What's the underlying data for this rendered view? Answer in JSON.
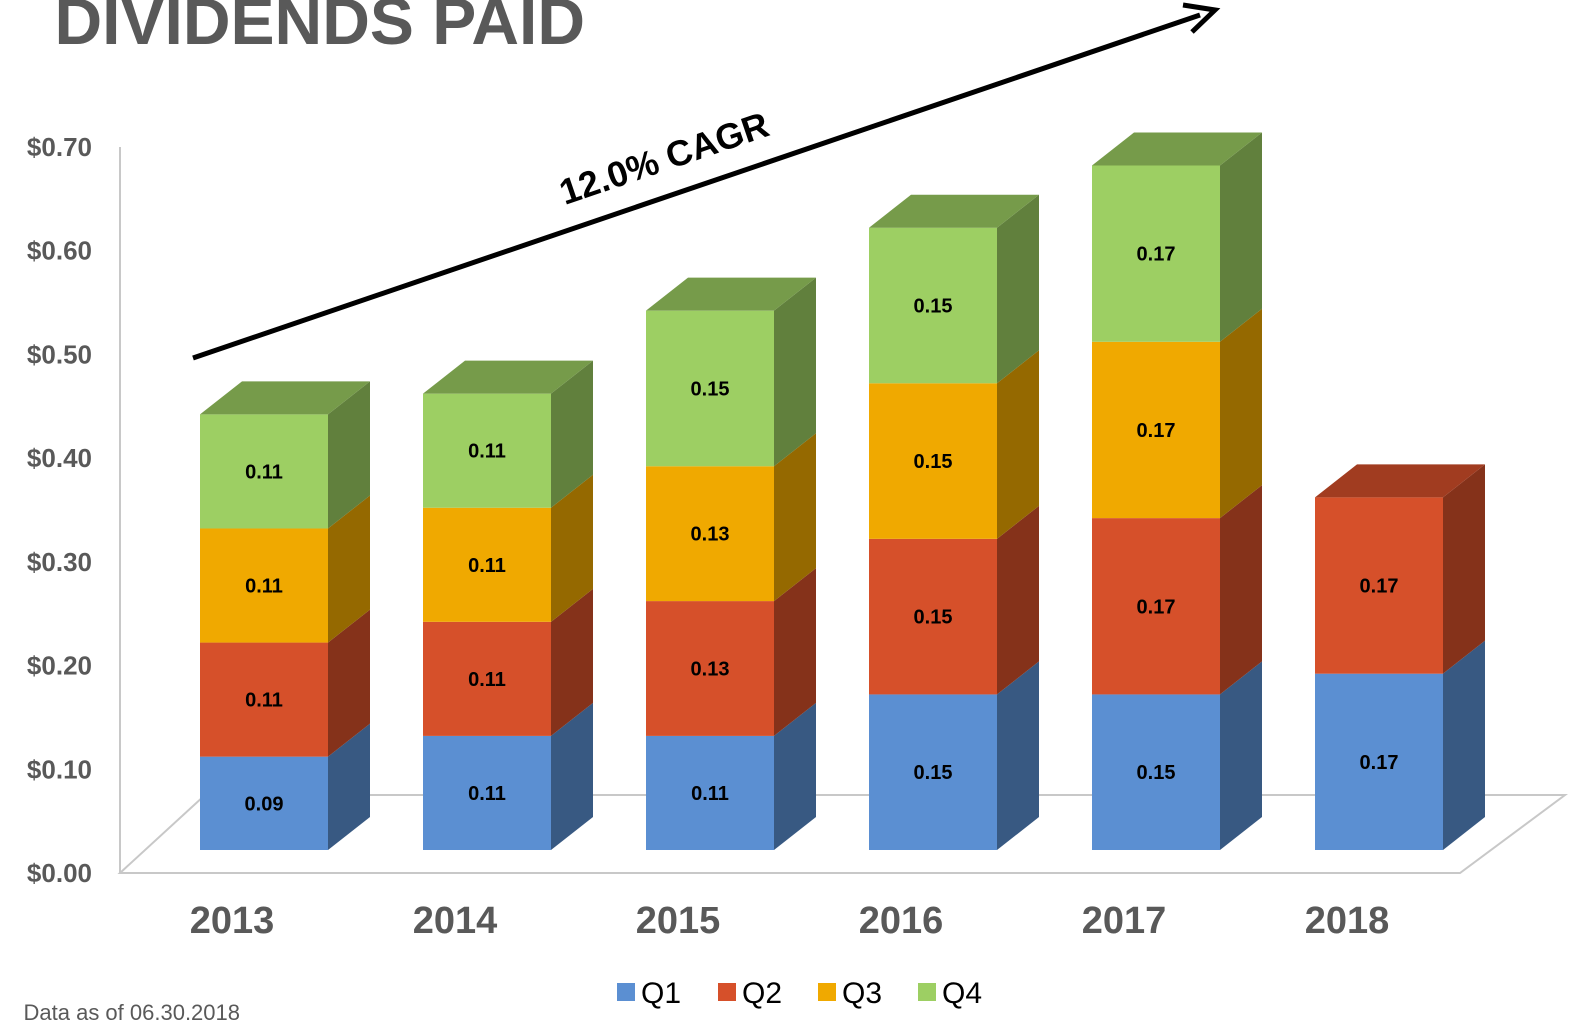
{
  "chart_data": {
    "type": "bar",
    "stacked": true,
    "title": "DIVIDENDS PAID",
    "annotation": "12.0% CAGR",
    "note": "Data as of 06.30.2018",
    "categories": [
      "2013",
      "2014",
      "2015",
      "2016",
      "2017",
      "2018"
    ],
    "series": [
      {
        "name": "Q1",
        "color": "#5b8fd2",
        "values": [
          0.09,
          0.11,
          0.11,
          0.15,
          0.15,
          0.17
        ]
      },
      {
        "name": "Q2",
        "color": "#d6502a",
        "values": [
          0.11,
          0.11,
          0.13,
          0.15,
          0.17,
          0.17
        ]
      },
      {
        "name": "Q3",
        "color": "#f0a900",
        "values": [
          0.11,
          0.11,
          0.13,
          0.15,
          0.17,
          null
        ]
      },
      {
        "name": "Q4",
        "color": "#9dcf63",
        "values": [
          0.11,
          0.11,
          0.15,
          0.15,
          0.17,
          null
        ]
      }
    ],
    "ylim": [
      0,
      0.7
    ],
    "yticks": [
      {
        "value": 0,
        "label": "$0.00"
      },
      {
        "value": 0.1,
        "label": "$0.10"
      },
      {
        "value": 0.2,
        "label": "$0.20"
      },
      {
        "value": 0.3,
        "label": "$0.30"
      },
      {
        "value": 0.4,
        "label": "$0.40"
      },
      {
        "value": 0.5,
        "label": "$0.50"
      },
      {
        "value": 0.6,
        "label": "$0.60"
      },
      {
        "value": 0.7,
        "label": "$0.70"
      }
    ],
    "grid": false,
    "legend": "bottom"
  }
}
